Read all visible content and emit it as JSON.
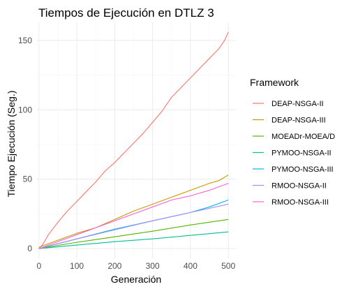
{
  "chart_data": {
    "type": "line",
    "title": "Tiempos de Ejecución en DTLZ 3",
    "xlabel": "Generación",
    "ylabel": "Tiempo Ejecución (Seg.)",
    "xlim": [
      -7,
      520
    ],
    "ylim": [
      -7,
      163
    ],
    "x_ticks": [
      0,
      100,
      200,
      300,
      400,
      500
    ],
    "y_ticks": [
      0,
      50,
      100,
      150
    ],
    "grid": true,
    "legend": {
      "title": "Framework",
      "placement": "right"
    },
    "series": [
      {
        "name": "DEAP-NSGA-II",
        "color": "#F8766D",
        "x": [
          0,
          10,
          25,
          50,
          75,
          100,
          125,
          150,
          175,
          200,
          225,
          250,
          275,
          300,
          325,
          350,
          375,
          400,
          425,
          450,
          475,
          490,
          500
        ],
        "y": [
          0,
          3,
          10,
          19,
          27,
          34,
          41,
          48,
          56,
          62,
          69,
          76,
          83,
          91,
          99,
          109,
          116,
          123,
          130,
          137,
          144,
          150,
          156
        ]
      },
      {
        "name": "DEAP-NSGA-III",
        "color": "#C49A00",
        "x": [
          0,
          50,
          100,
          150,
          200,
          250,
          300,
          350,
          400,
          450,
          475,
          500
        ],
        "y": [
          1,
          6,
          11,
          15,
          21,
          27,
          32,
          37,
          42,
          47,
          49,
          53
        ]
      },
      {
        "name": "MOEADr-MOEA/D",
        "color": "#53B400",
        "x": [
          0,
          100,
          200,
          300,
          400,
          500
        ],
        "y": [
          0,
          4.5,
          8.5,
          12.5,
          17,
          21
        ]
      },
      {
        "name": "PYMOO-NSGA-II",
        "color": "#00C094",
        "x": [
          0,
          100,
          200,
          300,
          400,
          500
        ],
        "y": [
          0,
          2.5,
          5,
          7,
          9.5,
          12
        ]
      },
      {
        "name": "PYMOO-NSGA-III",
        "color": "#00B6EB",
        "x": [
          0,
          100,
          200,
          300,
          400,
          450,
          500
        ],
        "y": [
          0,
          7,
          14,
          20,
          26,
          30,
          35
        ]
      },
      {
        "name": "RMOO-NSGA-II",
        "color": "#A58AFF",
        "x": [
          0,
          100,
          200,
          300,
          400,
          500
        ],
        "y": [
          0,
          7,
          13.5,
          20,
          26,
          32
        ]
      },
      {
        "name": "RMOO-NSGA-III",
        "color": "#FB61D7",
        "x": [
          0,
          50,
          100,
          150,
          200,
          250,
          300,
          350,
          400,
          450,
          500
        ],
        "y": [
          0,
          5,
          10,
          15,
          20,
          25,
          30,
          35,
          38,
          42,
          47
        ]
      }
    ]
  }
}
